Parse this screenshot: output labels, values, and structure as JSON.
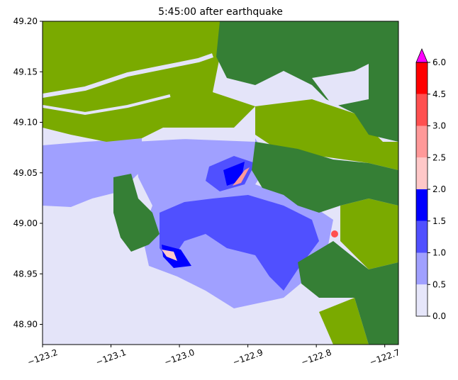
{
  "chart_data": {
    "type": "heatmap",
    "title": "5:45:00 after earthquake",
    "xlabel": "",
    "ylabel": "",
    "xlim": [
      -123.2,
      -122.68
    ],
    "ylim": [
      48.88,
      49.2
    ],
    "xticks": [
      -123.2,
      -123.1,
      -123.0,
      -122.9,
      -122.8,
      -122.7
    ],
    "xtick_labels": [
      "−123.2",
      "−123.1",
      "−123.0",
      "−122.9",
      "−122.8",
      "−122.7"
    ],
    "yticks": [
      48.9,
      48.95,
      49.0,
      49.05,
      49.1,
      49.15,
      49.2
    ],
    "ytick_labels": [
      "48.90",
      "48.95",
      "49.00",
      "49.05",
      "49.10",
      "49.15",
      "49.20"
    ],
    "colorbar": {
      "levels": [
        0.0,
        0.5,
        1.0,
        1.5,
        2.0,
        2.5,
        3.0,
        4.5,
        6.0
      ],
      "tick_labels": [
        "0.0",
        "0.5",
        "1.0",
        "1.5",
        "2.0",
        "2.5",
        "3.0",
        "4.5",
        "6.0"
      ],
      "colors": [
        "#e6e6fa",
        "#a0a0ff",
        "#5050ff",
        "#0000ff",
        "#ffc8c8",
        "#ff9999",
        "#ff5050",
        "#ff0000"
      ],
      "extend_max_color": "#ff00ff"
    },
    "land_colors": {
      "lowland": "#7aaa00",
      "highland": "#357f35"
    }
  }
}
